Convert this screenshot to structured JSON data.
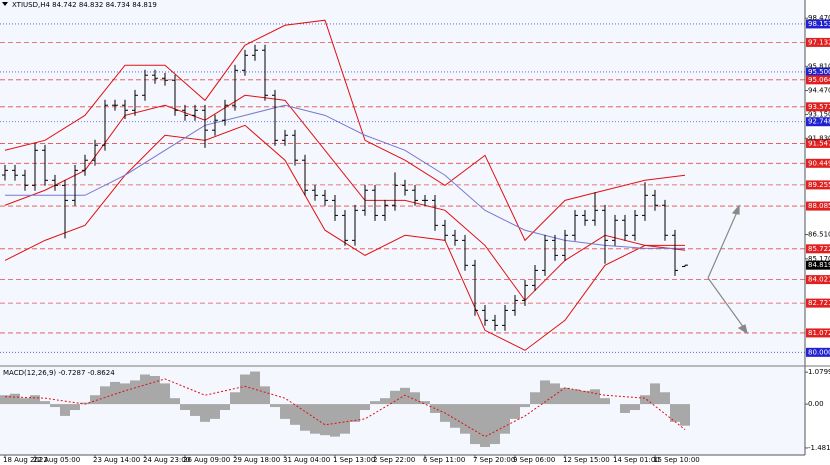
{
  "chart_data": [
    {
      "type": "ohlc",
      "title": "XTIUSD,H4 84.742 84.832 84.734 84.819",
      "bar_color": "#000000",
      "bars": {
        "open": [
          89.8,
          90.06,
          89.79,
          89.23,
          91.17,
          89.51,
          89.23,
          88.4,
          90.06,
          90.62,
          91.45,
          93.66,
          93.66,
          93.38,
          94.21,
          95.32,
          95.15,
          95.04,
          93.38,
          93.1,
          93.38,
          92.28,
          92.83,
          93.66,
          95.59,
          96.42,
          96.7,
          94.21,
          91.72,
          92,
          90.62,
          88.96,
          88.68,
          88.4,
          87.57,
          86.19,
          87.85,
          88.96,
          87.57,
          88.13,
          89.23,
          88.96,
          88.4,
          88.4,
          87.02,
          86.47,
          86.19,
          84.81,
          82.32,
          81.77,
          81.49,
          82.32,
          82.87,
          83.7,
          84.53,
          86.19,
          85.36,
          86.47,
          87.57,
          87.3,
          87.85,
          86.19,
          87.3,
          86.47,
          87.57,
          88.68,
          88.13,
          86.47,
          84.742
        ],
        "high": [
          90.36,
          90.36,
          90.09,
          91.55,
          91.47,
          89.81,
          89.53,
          90.36,
          90.92,
          91.75,
          93.96,
          93.96,
          93.96,
          94.51,
          95.62,
          95.62,
          95.45,
          95.34,
          93.68,
          93.68,
          93.68,
          93.13,
          93.96,
          95.89,
          96.72,
          97,
          97,
          94.51,
          92.3,
          92.3,
          90.92,
          89.26,
          88.98,
          88.7,
          87.87,
          88.15,
          89.26,
          89.26,
          88.43,
          89.95,
          89.53,
          89.26,
          88.7,
          88.7,
          87.32,
          86.77,
          86.49,
          85.11,
          82.62,
          82.07,
          82.62,
          83.17,
          84,
          84.83,
          86.49,
          86.49,
          86.77,
          87.87,
          87.87,
          88.85,
          88.15,
          87.6,
          87.6,
          87.87,
          89.4,
          88.98,
          88.43,
          86.77,
          84.832
        ],
        "low": [
          89.5,
          89.49,
          88.93,
          88.93,
          89.21,
          88.93,
          86.3,
          88.1,
          89.76,
          90.32,
          91.15,
          93.36,
          92.9,
          93.08,
          93.91,
          94.85,
          94.74,
          93.08,
          92.8,
          92.8,
          91.3,
          91.98,
          92.53,
          93.36,
          95.29,
          96.12,
          93.91,
          91.42,
          91.42,
          90.32,
          88.66,
          88.38,
          88.1,
          87.27,
          85.89,
          85.89,
          87.55,
          87.27,
          87.27,
          87.83,
          88.66,
          88.1,
          88.1,
          86.72,
          86.17,
          85.89,
          84.51,
          82.02,
          81.47,
          81.19,
          81.19,
          82.02,
          82.57,
          83.4,
          84.23,
          85.06,
          85.06,
          86.17,
          87,
          87,
          84.9,
          85.89,
          86.17,
          86.17,
          87.27,
          87.83,
          86.17,
          84.23,
          84.734
        ],
        "close": [
          90.06,
          89.79,
          89.23,
          91.17,
          89.51,
          89.23,
          88.4,
          90.06,
          90.62,
          91.45,
          93.66,
          93.66,
          93.38,
          94.21,
          95.32,
          95.15,
          95.04,
          93.38,
          93.1,
          93.38,
          92.28,
          92.83,
          93.66,
          95.59,
          96.42,
          96.7,
          94.21,
          91.72,
          92,
          90.62,
          88.96,
          88.68,
          88.4,
          87.57,
          86.19,
          87.85,
          88.96,
          87.57,
          88.13,
          89.23,
          88.96,
          88.4,
          88.4,
          87.02,
          86.47,
          86.19,
          84.81,
          82.32,
          81.77,
          81.49,
          82.32,
          82.87,
          83.7,
          84.53,
          86.19,
          85.36,
          86.47,
          87.57,
          87.3,
          87.85,
          86.19,
          87.3,
          86.47,
          87.57,
          88.68,
          88.13,
          86.47,
          84.53,
          84.819
        ]
      },
      "overlay_x": [
        0,
        4,
        8,
        12,
        16,
        20,
        24,
        28,
        32,
        36,
        40,
        44,
        48,
        52,
        56,
        60,
        64,
        68
      ],
      "overlays": [
        {
          "color": "#e01010",
          "values": [
            91.17,
            91.72,
            93.1,
            95.87,
            95.87,
            93.93,
            96.98,
            98.08,
            98.36,
            91.72,
            90.62,
            89.23,
            90.89,
            86.19,
            88.4,
            88.96,
            89.51,
            89.79
          ]
        },
        {
          "color": "#e01010",
          "values": [
            88.13,
            88.96,
            90.06,
            93.1,
            93.66,
            92.83,
            94.21,
            93.93,
            91.17,
            88.4,
            88.4,
            87.85,
            85.91,
            82.87,
            85.08,
            86.47,
            85.91,
            85.64
          ]
        },
        {
          "color": "#e01010",
          "values": [
            85.08,
            86.19,
            87.02,
            89.79,
            92,
            91.72,
            92.55,
            90.62,
            86.75,
            85.36,
            86.47,
            86.19,
            81.22,
            80.11,
            81.77,
            84.81,
            85.91,
            85.91
          ]
        },
        {
          "color": "#7878d0",
          "values": [
            88.68,
            88.68,
            88.68,
            89.79,
            91.17,
            92.55,
            93.1,
            93.66,
            93.1,
            92,
            91.17,
            89.79,
            87.85,
            86.75,
            86.19,
            85.91,
            85.75,
            85.75
          ]
        }
      ],
      "xticks": [
        {
          "value": 0,
          "label": "18 Aug 2022"
        },
        {
          "value": 3,
          "label": "22 Aug 05:00"
        },
        {
          "value": 9,
          "label": "23 Aug 14:00"
        },
        {
          "value": 14,
          "label": "24 Aug 23:00"
        },
        {
          "value": 18,
          "label": "26 Aug 09:00"
        },
        {
          "value": 23,
          "label": "29 Aug 18:00"
        },
        {
          "value": 28,
          "label": "31 Aug 04:00"
        },
        {
          "value": 33,
          "label": "1 Sep 13:00"
        },
        {
          "value": 37,
          "label": "2 Sep 22:00"
        },
        {
          "value": 42,
          "label": "6 Sep 11:00"
        },
        {
          "value": 47,
          "label": "7 Sep 20:00"
        },
        {
          "value": 51,
          "label": "9 Sep 06:00"
        },
        {
          "value": 56,
          "label": "12 Sep 15:00"
        },
        {
          "value": 61,
          "label": "14 Sep 01:00"
        },
        {
          "value": 65,
          "label": "15 Sep 10:00"
        }
      ],
      "ylim": [
        79.3,
        99.2
      ],
      "yticks": [
        {
          "value": 98.47,
          "label": "98.470"
        },
        {
          "value": 95.81,
          "label": "95.810"
        },
        {
          "value": 94.47,
          "label": "94.470"
        },
        {
          "value": 93.15,
          "label": "93.150"
        },
        {
          "value": 91.83,
          "label": "91.830"
        },
        {
          "value": 86.51,
          "label": "86.510"
        },
        {
          "value": 85.17,
          "label": "85.170"
        }
      ],
      "levels": [
        {
          "value": 98.153,
          "color": "#2020d0"
        },
        {
          "value": 97.132,
          "color": "#e02020"
        },
        {
          "value": {
            "value": 95.5,
            "label": "95.500"
          },
          "color": "#2020d0"
        },
        {
          "value": 95.064,
          "color": "#e02020"
        },
        {
          "value": 93.571,
          "color": "#e02020"
        },
        {
          "value": 92.748,
          "color": "#2020d0"
        },
        {
          "value": 91.547,
          "color": "#e02020"
        },
        {
          "value": 90.449,
          "color": "#e02020"
        },
        {
          "value": 89.255,
          "color": "#e02020"
        },
        {
          "value": 88.085,
          "color": "#e02020"
        },
        {
          "value": 85.722,
          "color": "#e02020"
        },
        {
          "value": 84.021,
          "color": "#e02020"
        },
        {
          "value": 82.721,
          "color": "#e02020"
        },
        {
          "value": 81.072,
          "color": "#e02020"
        },
        {
          "value": {
            "value": 80,
            "label": "80.000"
          },
          "color": "#2020d0"
        }
      ]
    },
    {
      "type": "macd",
      "label": "MACD(12,26,9) -0.7287 -0.8624",
      "color": "#a8a8a8",
      "values": [
        0.3,
        0.35,
        0.2,
        0.3,
        0.1,
        -0.1,
        -0.4,
        -0.2,
        0.05,
        0.3,
        0.6,
        0.75,
        0.7,
        0.8,
        1,
        0.95,
        0.7,
        0.2,
        -0.2,
        -0.4,
        -0.6,
        -0.5,
        -0.2,
        0.4,
        1,
        1.1,
        0.6,
        -0.1,
        -0.5,
        -0.7,
        -0.9,
        -1,
        -1.05,
        -1.1,
        -1,
        -0.6,
        -0.2,
        0.1,
        0.2,
        0.45,
        0.55,
        0.4,
        0.1,
        -0.3,
        -0.6,
        -0.8,
        -1,
        -1.35,
        -1.45,
        -1.35,
        -1,
        -0.5,
        -0.1,
        0.4,
        0.8,
        0.7,
        0.55,
        0.5,
        0.45,
        0.5,
        0.2,
        0,
        -0.3,
        -0.2,
        0.3,
        0.7,
        0.4,
        -0.6,
        -0.73
      ],
      "signal": {
        "color": "#e01010",
        "values": [
          0.25,
          0.2,
          0,
          0.45,
          0.85,
          0.3,
          0.6,
          0.2,
          -0.7,
          -0.5,
          0.3,
          -0.3,
          -1.1,
          -0.4,
          0.55,
          0.3,
          0.2,
          -0.86
        ]
      },
      "ylim": [
        -1.72,
        1.22
      ],
      "yticks": [
        1.0799,
        {
          "value": 0,
          "label": "0.00"
        },
        -1.4818
      ]
    }
  ]
}
